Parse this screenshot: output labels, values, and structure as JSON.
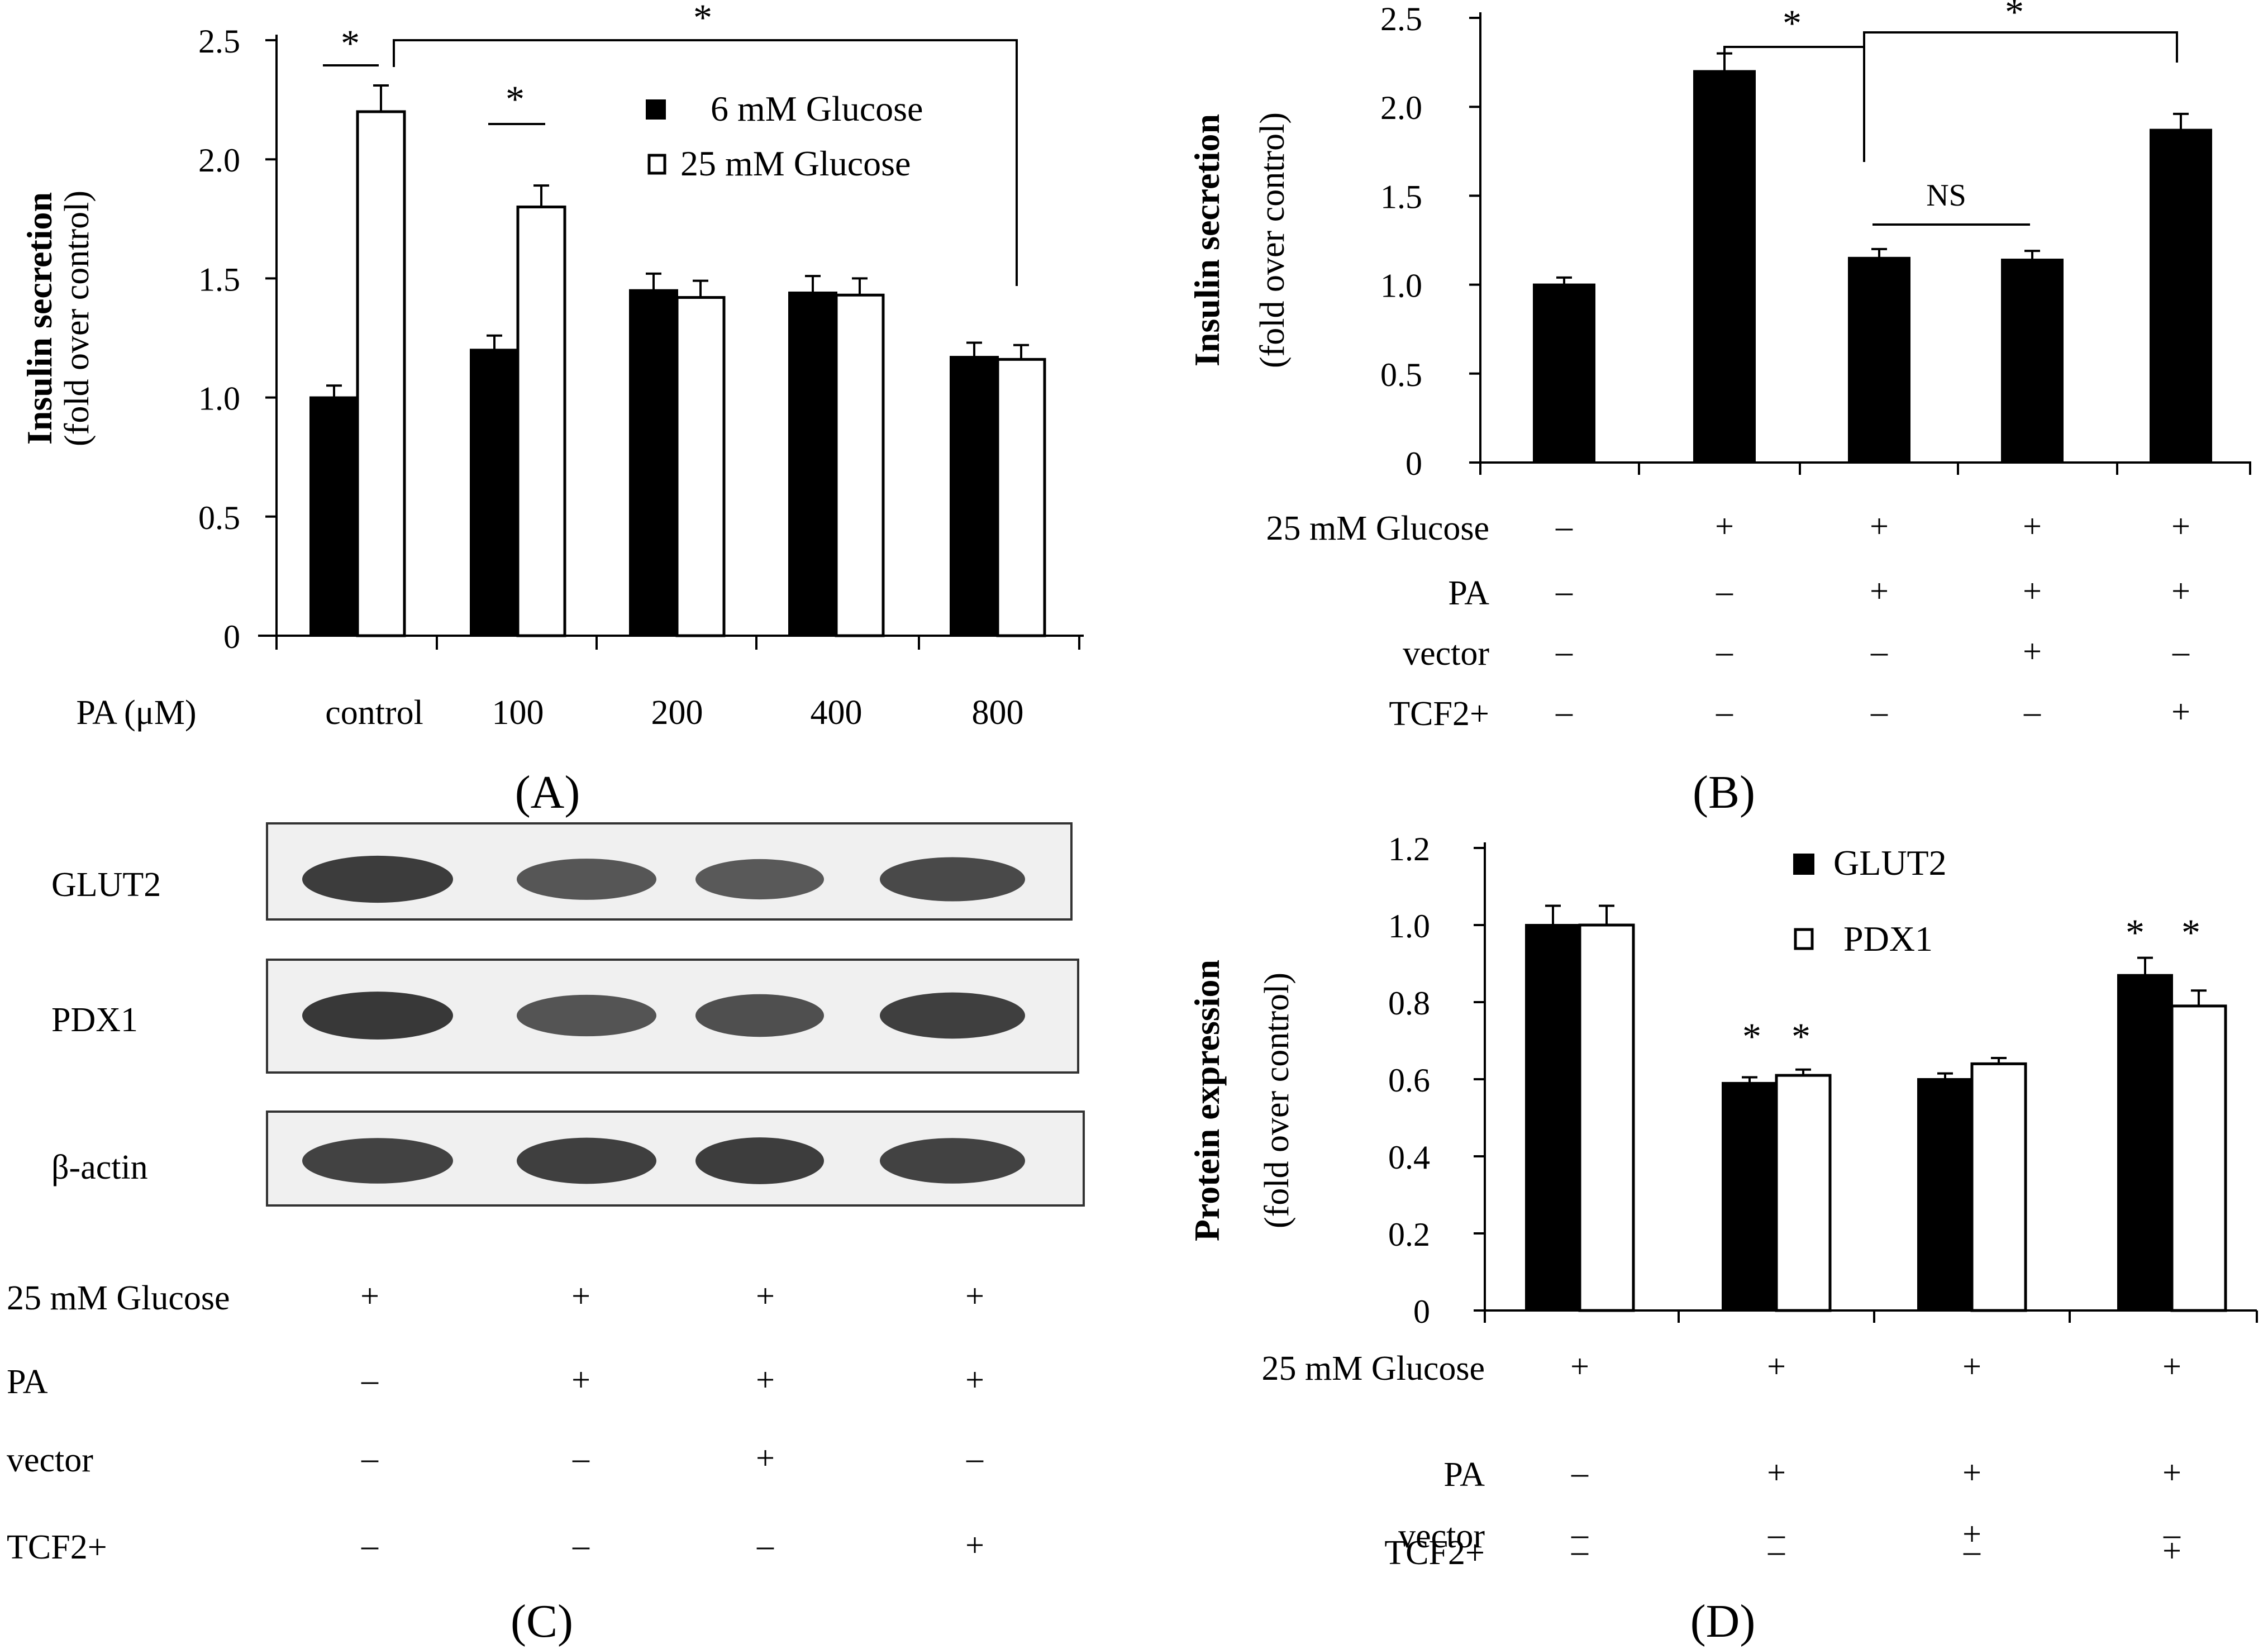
{
  "chart_data": [
    {
      "panel": "(A)",
      "type": "bar",
      "ylabel": "Insulin secretion",
      "ylabel_sub": "(fold over control)",
      "xlabel": "PA (μM)",
      "categories": [
        "control",
        "100",
        "200",
        "400",
        "800"
      ],
      "ylim": [
        0,
        2.5
      ],
      "yticks": [
        "0",
        "0.5",
        "1.0",
        "1.5",
        "2.0",
        "2.5"
      ],
      "legend_position": "top-right",
      "series": [
        {
          "name": "6 mM Glucose",
          "values": [
            1.0,
            1.2,
            1.45,
            1.44,
            1.17
          ],
          "errors": [
            0.05,
            0.06,
            0.07,
            0.07,
            0.06
          ],
          "color": "#000000"
        },
        {
          "name": "25 mM Glucose",
          "values": [
            2.2,
            1.8,
            1.42,
            1.43,
            1.16
          ],
          "errors": [
            0.11,
            0.09,
            0.07,
            0.07,
            0.06
          ],
          "color": "#ffffff"
        }
      ],
      "annotations": [
        "*",
        "*",
        "*"
      ]
    },
    {
      "panel": "(B)",
      "type": "bar",
      "ylabel": "Insulin secretion",
      "ylabel_sub": "(fold over control)",
      "ylim": [
        0,
        2.5
      ],
      "yticks": [
        "0",
        "0.5",
        "1.0",
        "1.5",
        "2.0",
        "2.5"
      ],
      "values": [
        1.0,
        2.2,
        1.15,
        1.14,
        1.87
      ],
      "errors": [
        0.04,
        0.1,
        0.05,
        0.05,
        0.09
      ],
      "conditions": [
        {
          "label": "25 mM Glucose",
          "marks": [
            "–",
            "+",
            "+",
            "+",
            "+"
          ]
        },
        {
          "label": "PA",
          "marks": [
            "–",
            "–",
            "+",
            "+",
            "+"
          ]
        },
        {
          "label": "vector",
          "marks": [
            "–",
            "–",
            "–",
            "+",
            "–"
          ]
        },
        {
          "label": "TCF2+",
          "marks": [
            "–",
            "–",
            "–",
            "–",
            "+"
          ]
        }
      ],
      "annotations": [
        "*",
        "*",
        "NS"
      ]
    },
    {
      "panel": "(D)",
      "type": "bar",
      "ylabel": "Protein expression",
      "ylabel_sub": "(fold over control)",
      "ylim": [
        0,
        1.2
      ],
      "yticks": [
        "0",
        "0.2",
        "0.4",
        "0.6",
        "0.8",
        "1.0",
        "1.2"
      ],
      "legend_position": "top-center",
      "series": [
        {
          "name": "GLUT2",
          "values": [
            1.0,
            0.59,
            0.6,
            0.87
          ],
          "errors": [
            0.05,
            0.015,
            0.015,
            0.045
          ],
          "color": "#000000"
        },
        {
          "name": "PDX1",
          "values": [
            1.0,
            0.61,
            0.64,
            0.79
          ],
          "errors": [
            0.05,
            0.015,
            0.015,
            0.04
          ],
          "color": "#ffffff"
        }
      ],
      "conditions": [
        {
          "label": "25 mM Glucose",
          "marks": [
            "+",
            "+",
            "+",
            "+"
          ]
        },
        {
          "label": "PA",
          "marks": [
            "–",
            "+",
            "+",
            "+"
          ]
        },
        {
          "label": "vector",
          "marks": [
            "–",
            "–",
            "+",
            "–"
          ]
        },
        {
          "label": "TCF2+",
          "marks": [
            "–",
            "–",
            "–",
            "+"
          ]
        }
      ],
      "annotations": [
        "*",
        "*",
        "*",
        "*"
      ]
    }
  ],
  "blot": {
    "panel": "(C)",
    "bands": [
      "GLUT2",
      "PDX1",
      "β-actin"
    ],
    "band_intensity": [
      [
        0.85,
        0.65,
        0.62,
        0.75
      ],
      [
        0.88,
        0.66,
        0.7,
        0.82
      ],
      [
        0.8,
        0.82,
        0.84,
        0.8
      ]
    ],
    "conditions": [
      {
        "label": "25 mM Glucose",
        "marks": [
          "+",
          "+",
          "+",
          "+"
        ]
      },
      {
        "label": "PA",
        "marks": [
          "–",
          "+",
          "+",
          "+"
        ]
      },
      {
        "label": "vector",
        "marks": [
          "–",
          "–",
          "+",
          "–"
        ]
      },
      {
        "label": "TCF2+",
        "marks": [
          "–",
          "–",
          "–",
          "+"
        ]
      }
    ]
  }
}
